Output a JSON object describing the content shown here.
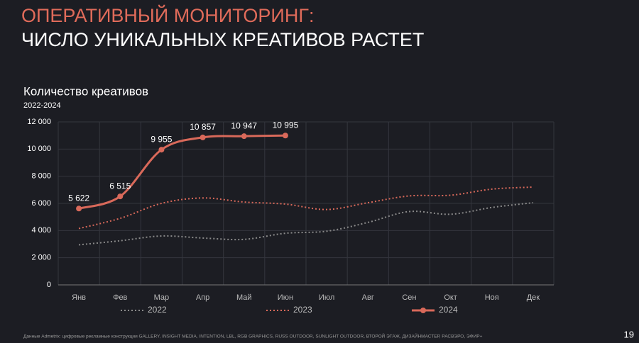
{
  "header": {
    "title": "ОПЕРАТИВНЫЙ МОНИТОРИНГ:",
    "subtitle": "ЧИСЛО УНИКАЛЬНЫХ КРЕАТИВОВ РАСТЕТ"
  },
  "chart_data": {
    "type": "line",
    "title": "Количество креативов",
    "subtitle": "2022-2024",
    "categories": [
      "Янв",
      "Фев",
      "Мар",
      "Апр",
      "Май",
      "Июн",
      "Июл",
      "Авг",
      "Сен",
      "Окт",
      "Ноя",
      "Дек"
    ],
    "series": [
      {
        "name": "2022",
        "color": "#8a8a8a",
        "style": "dotted",
        "values": [
          2950,
          3250,
          3600,
          3450,
          3350,
          3800,
          3950,
          4600,
          5400,
          5200,
          5700,
          6050
        ]
      },
      {
        "name": "2023",
        "color": "#d9695a",
        "style": "dotted",
        "values": [
          4150,
          4900,
          6000,
          6400,
          6100,
          5950,
          5550,
          6050,
          6550,
          6600,
          7050,
          7200
        ]
      },
      {
        "name": "2024",
        "color": "#d9695a",
        "style": "solid",
        "markers": true,
        "values": [
          5622,
          6515,
          9955,
          10857,
          10947,
          10995,
          null,
          null,
          null,
          null,
          null,
          null
        ],
        "value_labels": [
          "5 622",
          "6 515",
          "9 955",
          "10 857",
          "10 947",
          "10 995",
          null,
          null,
          null,
          null,
          null,
          null
        ]
      }
    ],
    "ylim": [
      0,
      12000
    ],
    "yticks": [
      0,
      {
        "value": 2000,
        "label": "2 000"
      },
      {
        "value": 4000,
        "label": "4 000"
      },
      {
        "value": 6000,
        "label": "6 000"
      },
      {
        "value": 8000,
        "label": "8 000"
      },
      {
        "value": 10000,
        "label": "10 000"
      },
      {
        "value": 12000,
        "label": "12 000"
      }
    ],
    "grid": true,
    "legend": "bottom"
  },
  "footer": {
    "source": "Данные Admetrix: цифровые рекламные конструкции GALLERY, INSIGHT MEDIA, INTENTION, LBL, RGB GRAPHICS, RUSS OUTDOOR, SUNLIGHT OUTDOOR, ВТОРОЙ ЭТАЖ, ДИЗАЙНМАСТЕР, РАСВЭРО, ЭФИР+",
    "page": "19"
  }
}
